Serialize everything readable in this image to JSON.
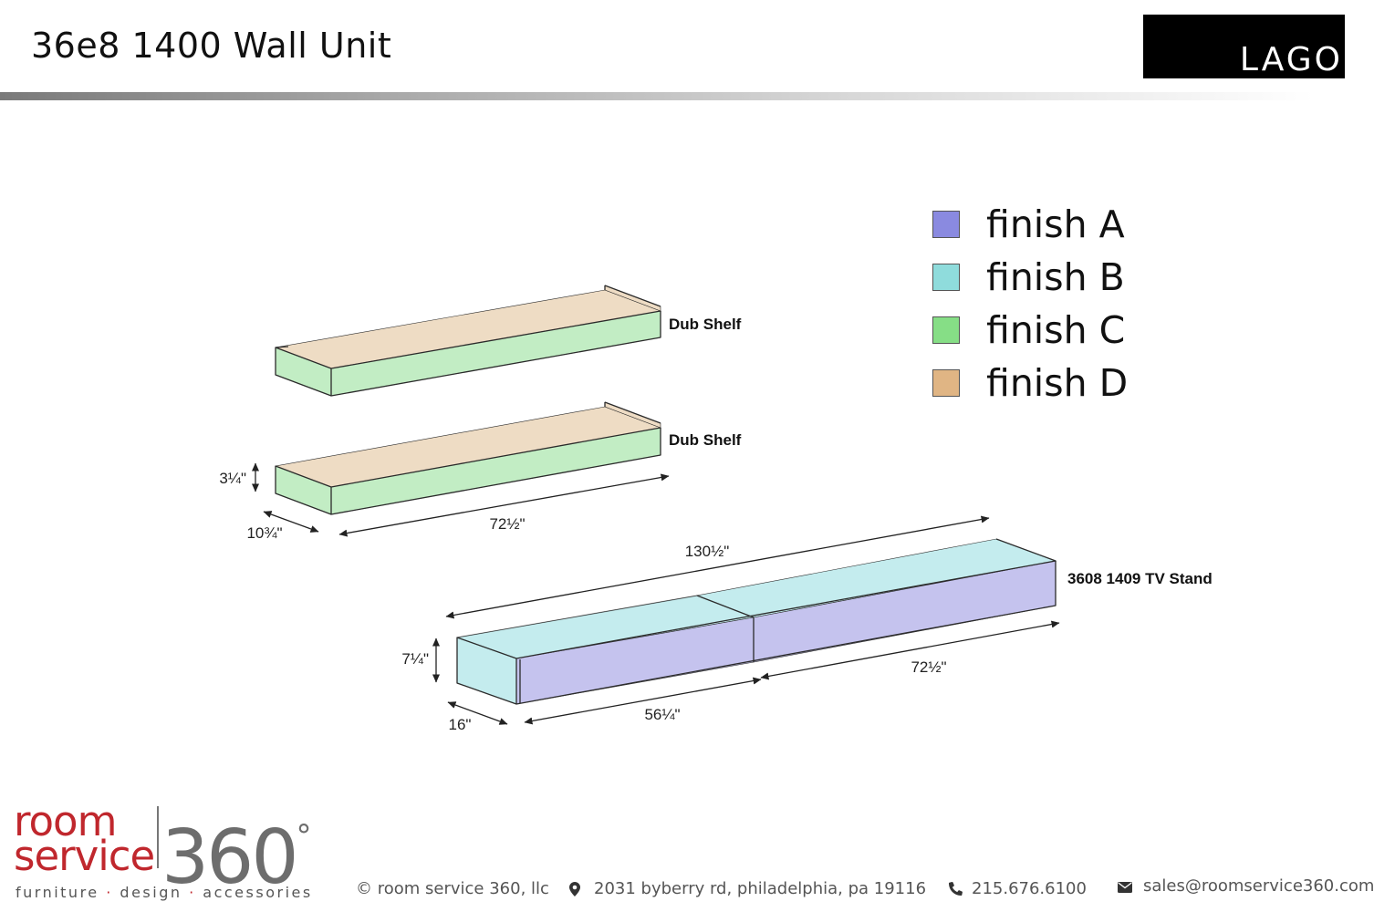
{
  "header": {
    "title": "36e8 1400 Wall Unit",
    "brand_logo": "LAGO"
  },
  "legend": [
    {
      "label": "finish A",
      "color": "#8a8ae0"
    },
    {
      "label": "finish B",
      "color": "#8fdcdc"
    },
    {
      "label": "finish C",
      "color": "#86de86"
    },
    {
      "label": "finish D",
      "color": "#e0b584"
    }
  ],
  "diagram": {
    "colors": {
      "finish_a_face": "#c5c3ee",
      "finish_b_face": "#c4ecee",
      "finish_c_face": "#c2edc4",
      "finish_d_face": "#eedcc4",
      "outline": "#2b2b2b"
    },
    "shelf_top": {
      "label": "Dub Shelf"
    },
    "shelf_bottom": {
      "label": "Dub Shelf",
      "dim_height": "3¼\"",
      "dim_depth": "10¾\"",
      "dim_width": "72½\""
    },
    "tv_stand": {
      "label": "3608 1409 TV Stand",
      "dim_overall": "130½\"",
      "dim_height": "7¼\"",
      "dim_depth": "16\"",
      "dim_left": "56¼\"",
      "dim_right": "72½\""
    }
  },
  "footer": {
    "logo_room": "room",
    "logo_service": "service",
    "logo_number": "360",
    "logo_degree": "°",
    "tagline_1": "furniture",
    "tagline_2": "design",
    "tagline_3": "accessories",
    "tagline_sep": "·",
    "copyright": "© room service 360, llc",
    "address": "2031 byberry rd, philadelphia, pa 19116",
    "phone": "215.676.6100",
    "email": "sales@roomservice360.com"
  }
}
